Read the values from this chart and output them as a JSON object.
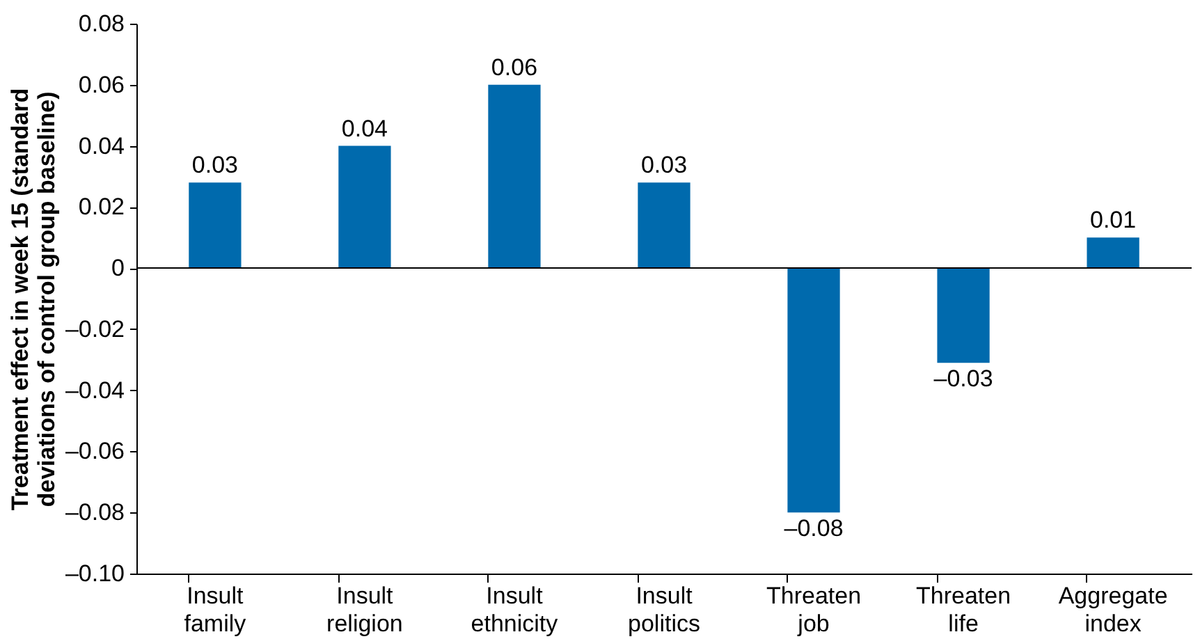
{
  "chart_data": {
    "type": "bar",
    "ylabel": "Treatment effect in week 15 (standard deviations of control group baseline)",
    "categories": [
      "Insult family",
      "Insult religion",
      "Insult ethnicity",
      "Insult politics",
      "Threaten job",
      "Threaten life",
      "Aggregate index"
    ],
    "values": [
      0.028,
      0.04,
      0.06,
      0.028,
      -0.08,
      -0.031,
      0.01
    ],
    "value_labels": [
      "0.03",
      "0.04",
      "0.06",
      "0.03",
      "–0.08",
      "–0.03",
      "0.01"
    ],
    "color": "#006aad",
    "ylim": [
      -0.1,
      0.08
    ],
    "yticks": [
      {
        "value": -0.1,
        "label": "–0.10"
      },
      {
        "value": -0.08,
        "label": "–0.08"
      },
      {
        "value": -0.06,
        "label": "–0.06"
      },
      {
        "value": -0.04,
        "label": "–0.04"
      },
      {
        "value": -0.02,
        "label": "–0.02"
      },
      0,
      0.02,
      0.04,
      0.06,
      0.08
    ],
    "ref_lines": [
      {
        "axis": "y",
        "value": 0,
        "color": "#000000"
      }
    ],
    "grid": false
  }
}
